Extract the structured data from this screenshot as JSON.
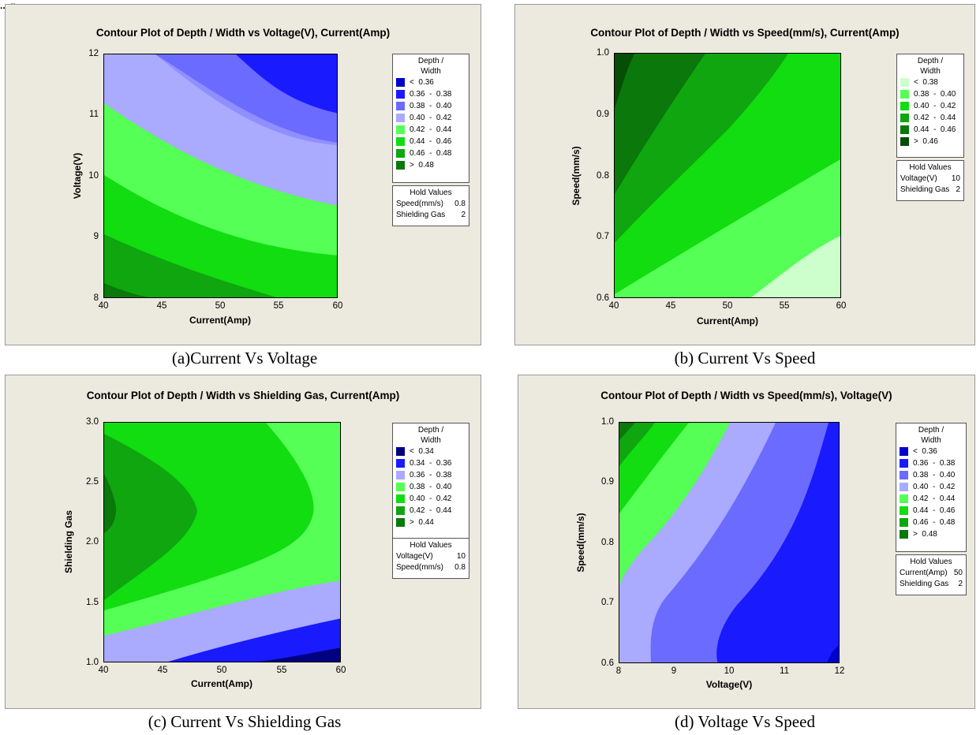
{
  "top_fragment": "...,p...",
  "captions": [
    "(a)Current  Vs Voltage",
    "(b) Current Vs Speed",
    "(c) Current Vs Shielding Gas",
    "(d) Voltage Vs Speed"
  ],
  "chart_data": [
    {
      "type": "contour",
      "title": "Contour Plot of Depth / Width vs Voltage(V), Current(Amp)",
      "xlabel": "Current(Amp)",
      "ylabel": "Voltage(V)",
      "xlim": [
        40,
        60
      ],
      "ylim": [
        8,
        12
      ],
      "xticks": [
        "40",
        "45",
        "50",
        "55",
        "60"
      ],
      "yticks": [
        "8",
        "9",
        "10",
        "11",
        "12"
      ],
      "legend_title": [
        "Depth /",
        "Width"
      ],
      "legend": [
        {
          "range": "<  0.36",
          "color": "#0000cc"
        },
        {
          "range": "0.36  -  0.38",
          "color": "#1a1aff"
        },
        {
          "range": "0.38  -  0.40",
          "color": "#6b6bff"
        },
        {
          "range": "0.40  -  0.42",
          "color": "#aaaaff"
        },
        {
          "range": "0.42  -  0.44",
          "color": "#55ff55"
        },
        {
          "range": "0.44  -  0.46",
          "color": "#11dd11"
        },
        {
          "range": "0.46  -  0.48",
          "color": "#0fa60f"
        },
        {
          "range": ">  0.48",
          "color": "#0a780a"
        }
      ],
      "hold_title": "Hold Values",
      "hold": [
        {
          "name": "Speed(mm/s)",
          "value": "0.8"
        },
        {
          "name": "Shielding Gas",
          "value": "2"
        }
      ],
      "bands_ordered_from_low_to_high": [
        "#1a1aff",
        "#6b6bff",
        "#aaaaff",
        "#55ff55",
        "#11dd11",
        "#0fa60f",
        "#0a780a"
      ]
    },
    {
      "type": "contour",
      "title": "Contour Plot of Depth / Width vs Speed(mm/s), Current(Amp)",
      "xlabel": "Current(Amp)",
      "ylabel": "Speed(mm/s)",
      "xlim": [
        40,
        60
      ],
      "ylim": [
        0.6,
        1.0
      ],
      "xticks": [
        "40",
        "45",
        "50",
        "55",
        "60"
      ],
      "yticks": [
        "0.6",
        "0.7",
        "0.8",
        "0.9",
        "1.0"
      ],
      "legend_title": [
        "Depth /",
        "Width"
      ],
      "legend": [
        {
          "range": "<  0.38",
          "color": "#ccffcc"
        },
        {
          "range": "0.38  -  0.40",
          "color": "#55ff55"
        },
        {
          "range": "0.40  -  0.42",
          "color": "#11dd11"
        },
        {
          "range": "0.42  -  0.44",
          "color": "#0fa60f"
        },
        {
          "range": "0.44  -  0.46",
          "color": "#0a780a"
        },
        {
          "range": ">  0.46",
          "color": "#064d06"
        }
      ],
      "hold_title": "Hold Values",
      "hold": [
        {
          "name": "Voltage(V)",
          "value": "10"
        },
        {
          "name": "Shielding Gas",
          "value": "2"
        }
      ]
    },
    {
      "type": "contour",
      "title": "Contour Plot of Depth / Width vs Shielding Gas, Current(Amp)",
      "xlabel": "Current(Amp)",
      "ylabel": "Shielding Gas",
      "xlim": [
        40,
        60
      ],
      "ylim": [
        1.0,
        3.0
      ],
      "xticks": [
        "40",
        "45",
        "50",
        "55",
        "60"
      ],
      "yticks": [
        "1.0",
        "1.5",
        "2.0",
        "2.5",
        "3.0"
      ],
      "legend_title": [
        "Depth /",
        "Width"
      ],
      "legend": [
        {
          "range": "<  0.34",
          "color": "#000080"
        },
        {
          "range": "0.34  -  0.36",
          "color": "#1a1aff"
        },
        {
          "range": "0.36  -  0.38",
          "color": "#aaaaff"
        },
        {
          "range": "0.38  -  0.40",
          "color": "#55ff55"
        },
        {
          "range": "0.40  -  0.42",
          "color": "#11dd11"
        },
        {
          "range": "0.42  -  0.44",
          "color": "#0fa60f"
        },
        {
          "range": ">  0.44",
          "color": "#0a780a"
        }
      ],
      "hold_title": "Hold Values",
      "hold": [
        {
          "name": "Voltage(V)",
          "value": "10"
        },
        {
          "name": "Speed(mm/s)",
          "value": "0.8"
        }
      ]
    },
    {
      "type": "contour",
      "title": "Contour Plot of Depth / Width vs Speed(mm/s), Voltage(V)",
      "xlabel": "Voltage(V)",
      "ylabel": "Speed(mm/s)",
      "xlim": [
        8,
        12
      ],
      "ylim": [
        0.6,
        1.0
      ],
      "xticks": [
        "8",
        "9",
        "10",
        "11",
        "12"
      ],
      "yticks": [
        "0.6",
        "0.7",
        "0.8",
        "0.9",
        "1.0"
      ],
      "legend_title": [
        "Depth /",
        "Width"
      ],
      "legend": [
        {
          "range": "<  0.36",
          "color": "#0000cc"
        },
        {
          "range": "0.36  -  0.38",
          "color": "#1a1aff"
        },
        {
          "range": "0.38  -  0.40",
          "color": "#6b6bff"
        },
        {
          "range": "0.40  -  0.42",
          "color": "#aaaaff"
        },
        {
          "range": "0.42  -  0.44",
          "color": "#55ff55"
        },
        {
          "range": "0.44  -  0.46",
          "color": "#11dd11"
        },
        {
          "range": "0.46  -  0.48",
          "color": "#0fa60f"
        },
        {
          "range": ">  0.48",
          "color": "#0a780a"
        }
      ],
      "hold_title": "Hold Values",
      "hold": [
        {
          "name": "Current(Amp)",
          "value": "50"
        },
        {
          "name": "Shielding Gas",
          "value": "2"
        }
      ]
    }
  ]
}
